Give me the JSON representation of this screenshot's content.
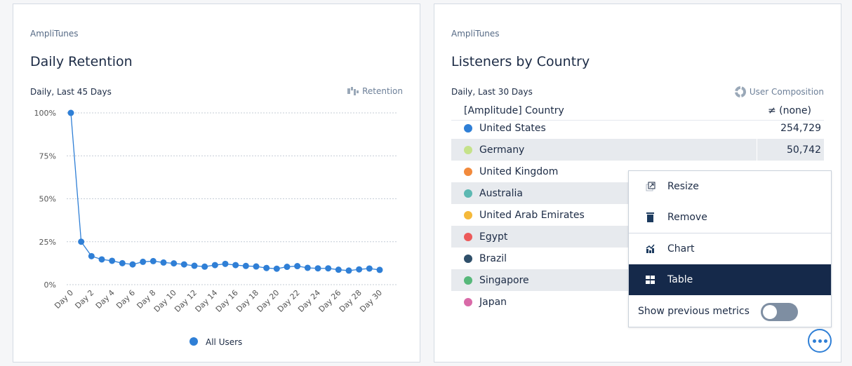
{
  "retention_card": {
    "app": "AmpliTunes",
    "title": "Daily Retention",
    "subtitle": "Daily, Last 45 Days",
    "chart_type_label": "Retention",
    "chart_type_icon": "retention-icon"
  },
  "chart_data": {
    "type": "line",
    "x": [
      "Day 0",
      "Day 1",
      "Day 2",
      "Day 3",
      "Day 4",
      "Day 5",
      "Day 6",
      "Day 7",
      "Day 8",
      "Day 9",
      "Day 10",
      "Day 11",
      "Day 12",
      "Day 13",
      "Day 14",
      "Day 15",
      "Day 16",
      "Day 17",
      "Day 18",
      "Day 19",
      "Day 20",
      "Day 21",
      "Day 22",
      "Day 23",
      "Day 24",
      "Day 25",
      "Day 26",
      "Day 27",
      "Day 28",
      "Day 29",
      "Day 30"
    ],
    "x_tick_labels": [
      "Day 0",
      "Day 2",
      "Day 4",
      "Day 6",
      "Day 8",
      "Day 10",
      "Day 12",
      "Day 14",
      "Day 16",
      "Day 18",
      "Day 20",
      "Day 22",
      "Day 24",
      "Day 26",
      "Day 28",
      "Day 30"
    ],
    "series": [
      {
        "name": "All Users",
        "color": "#2f7fd6",
        "values": [
          100,
          25,
          16.6,
          14.7,
          13.9,
          12.5,
          11.8,
          13.3,
          13.7,
          12.9,
          12.4,
          11.8,
          11.0,
          10.5,
          11.4,
          12.1,
          11.4,
          10.9,
          10.6,
          9.7,
          9.3,
          10.4,
          10.8,
          9.8,
          9.5,
          9.5,
          8.7,
          8.2,
          8.9,
          9.4,
          8.6
        ]
      }
    ],
    "y_ticks": [
      "0%",
      "25%",
      "50%",
      "75%",
      "100%"
    ],
    "ylim": [
      0,
      100
    ],
    "grid": true,
    "legend": "bottom",
    "xlabel": "",
    "ylabel": ""
  },
  "country_card": {
    "app": "AmpliTunes",
    "title": "Listeners by Country",
    "subtitle": "Daily, Last 30 Days",
    "chart_type_label": "User Composition",
    "chart_type_icon": "donut-icon",
    "col_property": "[Amplitude] Country",
    "col_value": "≠ (none)",
    "rows": [
      {
        "name": "United States",
        "color": "#2f7fd6",
        "value": "254,729"
      },
      {
        "name": "Germany",
        "color": "#c5e28a",
        "value": "50,742"
      },
      {
        "name": "United Kingdom",
        "color": "#f28a3c"
      },
      {
        "name": "Australia",
        "color": "#5cb8b2"
      },
      {
        "name": "United Arab Emirates",
        "color": "#f5b93a"
      },
      {
        "name": "Egypt",
        "color": "#ec5a5a"
      },
      {
        "name": "Brazil",
        "color": "#2f4f6a"
      },
      {
        "name": "Singapore",
        "color": "#57b87a"
      },
      {
        "name": "Japan",
        "color": "#d96aa8"
      }
    ]
  },
  "menu": {
    "items": [
      {
        "label": "Resize",
        "icon": "resize-icon"
      },
      {
        "label": "Remove",
        "icon": "trash-icon"
      },
      {
        "label": "Chart",
        "icon": "chart-icon"
      },
      {
        "label": "Table",
        "icon": "table-icon",
        "selected": true
      }
    ],
    "toggle_label": "Show previous metrics",
    "toggle_on": false
  }
}
